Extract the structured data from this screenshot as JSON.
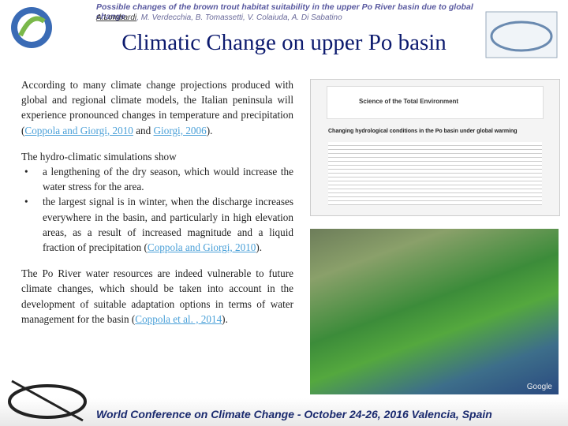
{
  "header": {
    "title": "Possible changes of the brown trout habitat suitability in the upper Po River basin due to global change",
    "first_author": "A.Lombardi",
    "authors": ", M. Verdecchia, B. Tomassetti, V. Colaiuda, A. Di Sabatino"
  },
  "slide_title": "Climatic Change on upper Po basin",
  "paragraphs": [
    {
      "parts": [
        "According to many climate change projections produced with global and regional climate models, the Italian peninsula will experience pronounced changes in temperature and precipitation (",
        {
          "link": "Coppola and Giorgi, 2010"
        },
        " and ",
        {
          "link": "Giorgi, 2006"
        },
        ")."
      ]
    },
    {
      "parts": [
        "The hydro-climatic simulations show"
      ],
      "bullets": [
        {
          "parts": [
            "a lengthening of the dry season, which would increase the water stress for the area."
          ]
        },
        {
          "parts": [
            "the largest signal is in winter, when the discharge increases everywhere in the basin, and particularly in high elevation areas, as a result of increased magnitude and a liquid fraction of precipitation (",
            {
              "link": "Coppola and Giorgi, 2010"
            },
            ")."
          ]
        }
      ]
    },
    {
      "parts": [
        "The Po River water resources are indeed vulnerable to future climate changes, which should be taken into account in the development of suitable adaptation options in terms of water management for the basin (",
        {
          "link": "Coppola et al. , 2014"
        },
        ")."
      ]
    }
  ],
  "paper": {
    "journal": "Science of the Total Environment",
    "title": "Changing hydrological conditions in the Po basin under global warming"
  },
  "map": {
    "watermark": "Google"
  },
  "footer": {
    "text": "World Conference on Climate Change - October 24-26, 2016 Valencia, Spain"
  }
}
